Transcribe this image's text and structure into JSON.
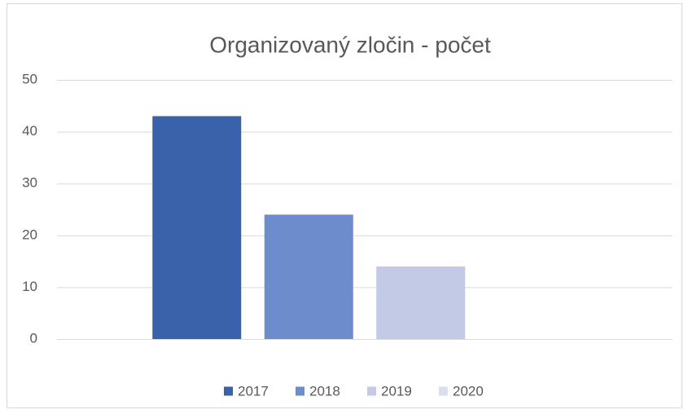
{
  "chart_data": {
    "type": "bar",
    "title": "Organizovaný zločin - počet",
    "categories": [
      null
    ],
    "series": [
      {
        "name": "2017",
        "color": "#3a62aa",
        "values": [
          43
        ]
      },
      {
        "name": "2018",
        "color": "#6d8ccc",
        "values": [
          24
        ]
      },
      {
        "name": "2019",
        "color": "#c2cae6",
        "values": [
          14
        ]
      },
      {
        "name": "2020",
        "color": "#d9dff0",
        "values": [
          0
        ]
      }
    ],
    "ylim": [
      0,
      50
    ],
    "yticks": [
      0,
      10,
      20,
      30,
      40,
      50
    ],
    "grid": true,
    "legend": "bottom"
  }
}
